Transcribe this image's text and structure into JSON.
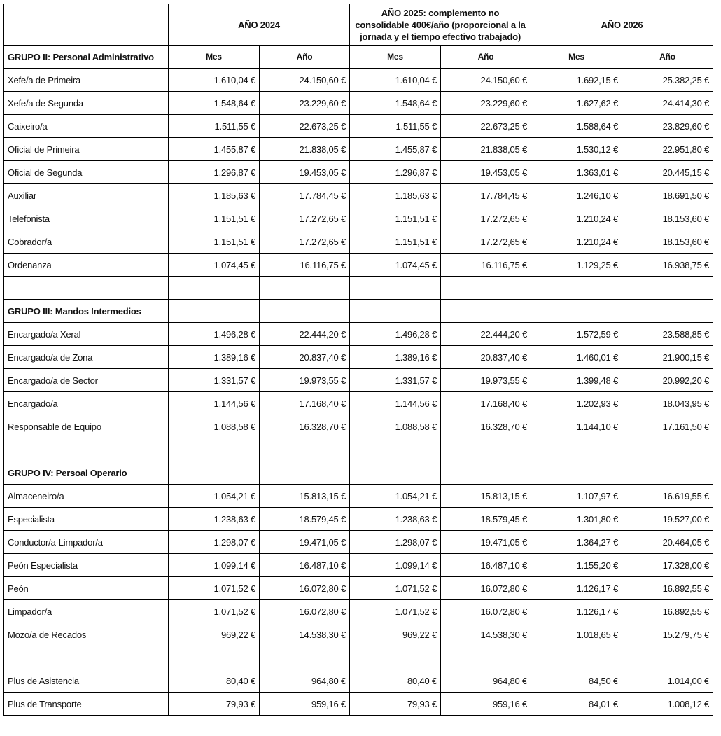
{
  "table": {
    "header": {
      "years": [
        "AÑO 2024",
        "AÑO 2025: complemento no consolidable 400€/año (proporcional a la jornada y el tiempo efectivo trabajado)",
        "AÑO 2026"
      ],
      "subcolumns": [
        "Mes",
        "Año"
      ]
    },
    "sections": [
      {
        "title": "GRUPO II: Personal Administrativo",
        "rows": [
          [
            "Xefe/a de Primeira",
            "1.610,04 €",
            "24.150,60 €",
            "1.610,04 €",
            "24.150,60 €",
            "1.692,15 €",
            "25.382,25 €"
          ],
          [
            "Xefe/a de Segunda",
            "1.548,64 €",
            "23.229,60 €",
            "1.548,64 €",
            "23.229,60 €",
            "1.627,62 €",
            "24.414,30 €"
          ],
          [
            "Caixeiro/a",
            "1.511,55 €",
            "22.673,25 €",
            "1.511,55 €",
            "22.673,25 €",
            "1.588,64 €",
            "23.829,60 €"
          ],
          [
            "Oficial de Primeira",
            "1.455,87 €",
            "21.838,05 €",
            "1.455,87 €",
            "21.838,05 €",
            "1.530,12 €",
            "22.951,80 €"
          ],
          [
            "Oficial de Segunda",
            "1.296,87 €",
            "19.453,05 €",
            "1.296,87 €",
            "19.453,05 €",
            "1.363,01 €",
            "20.445,15 €"
          ],
          [
            "Auxiliar",
            "1.185,63 €",
            "17.784,45 €",
            "1.185,63 €",
            "17.784,45 €",
            "1.246,10 €",
            "18.691,50 €"
          ],
          [
            "Telefonista",
            "1.151,51 €",
            "17.272,65 €",
            "1.151,51 €",
            "17.272,65 €",
            "1.210,24 €",
            "18.153,60 €"
          ],
          [
            "Cobrador/a",
            "1.151,51 €",
            "17.272,65 €",
            "1.151,51 €",
            "17.272,65 €",
            "1.210,24 €",
            "18.153,60 €"
          ],
          [
            "Ordenanza",
            "1.074,45 €",
            "16.116,75 €",
            "1.074,45 €",
            "16.116,75 €",
            "1.129,25 €",
            "16.938,75 €"
          ]
        ]
      },
      {
        "title": "GRUPO III: Mandos Intermedios",
        "rows": [
          [
            "Encargado/a Xeral",
            "1.496,28 €",
            "22.444,20 €",
            "1.496,28 €",
            "22.444,20 €",
            "1.572,59 €",
            "23.588,85 €"
          ],
          [
            "Encargado/a de Zona",
            "1.389,16 €",
            "20.837,40 €",
            "1.389,16 €",
            "20.837,40 €",
            "1.460,01 €",
            "21.900,15 €"
          ],
          [
            "Encargado/a de Sector",
            "1.331,57 €",
            "19.973,55 €",
            "1.331,57 €",
            "19.973,55 €",
            "1.399,48 €",
            "20.992,20 €"
          ],
          [
            "Encargado/a",
            "1.144,56 €",
            "17.168,40 €",
            "1.144,56 €",
            "17.168,40 €",
            "1.202,93 €",
            "18.043,95 €"
          ],
          [
            "Responsable de Equipo",
            "1.088,58 €",
            "16.328,70 €",
            "1.088,58 €",
            "16.328,70 €",
            "1.144,10 €",
            "17.161,50 €"
          ]
        ]
      },
      {
        "title": "GRUPO IV: Persoal Operario",
        "rows": [
          [
            "Almaceneiro/a",
            "1.054,21 €",
            "15.813,15 €",
            "1.054,21 €",
            "15.813,15 €",
            "1.107,97 €",
            "16.619,55 €"
          ],
          [
            "Especialista",
            "1.238,63 €",
            "18.579,45 €",
            "1.238,63 €",
            "18.579,45 €",
            "1.301,80 €",
            "19.527,00 €"
          ],
          [
            "Conductor/a-Limpador/a",
            "1.298,07 €",
            "19.471,05 €",
            "1.298,07 €",
            "19.471,05 €",
            "1.364,27 €",
            "20.464,05 €"
          ],
          [
            "Peón Especialista",
            "1.099,14 €",
            "16.487,10 €",
            "1.099,14 €",
            "16.487,10 €",
            "1.155,20 €",
            "17.328,00 €"
          ],
          [
            "Peón",
            "1.071,52 €",
            "16.072,80 €",
            "1.071,52 €",
            "16.072,80 €",
            "1.126,17 €",
            "16.892,55 €"
          ],
          [
            "Limpador/a",
            "1.071,52 €",
            "16.072,80 €",
            "1.071,52 €",
            "16.072,80 €",
            "1.126,17 €",
            "16.892,55 €"
          ],
          [
            "Mozo/a de Recados",
            "969,22 €",
            "14.538,30 €",
            "969,22 €",
            "14.538,30 €",
            "1.018,65 €",
            "15.279,75 €"
          ]
        ]
      },
      {
        "rows": [
          [
            "Plus de Asistencia",
            "80,40 €",
            "964,80 €",
            "80,40 €",
            "964,80 €",
            "84,50 €",
            "1.014,00 €"
          ],
          [
            "Plus de Transporte",
            "79,93 €",
            "959,16 €",
            "79,93 €",
            "959,16 €",
            "84,01 €",
            "1.008,12 €"
          ]
        ]
      }
    ]
  }
}
